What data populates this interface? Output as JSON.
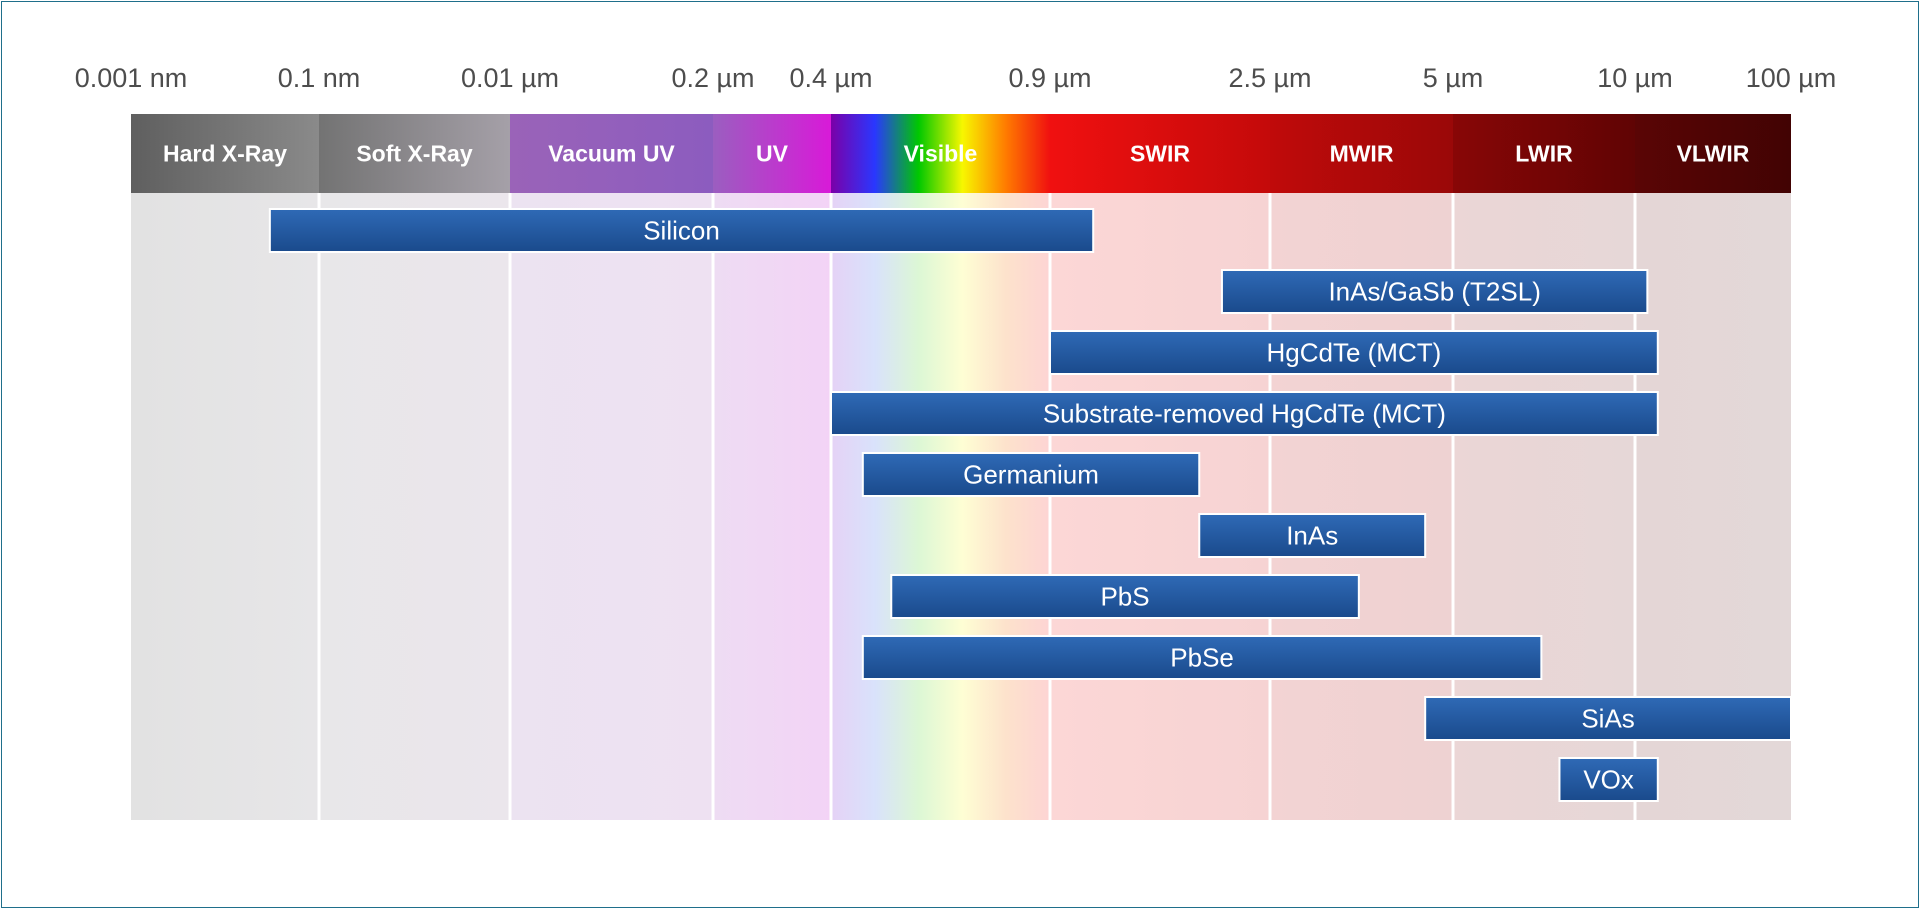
{
  "chart_data": {
    "type": "bar",
    "title": "",
    "xlabel": "",
    "ylabel": "",
    "grid": true,
    "x_scale": "piecewise-log wavelength",
    "tick_labels": [
      "0.001 nm",
      "0.1 nm",
      "0.01 µm",
      "0.2 µm",
      "0.4 µm",
      "0.9 µm",
      "2.5 µm",
      "5 µm",
      "10 µm",
      "100 µm"
    ],
    "bands": [
      {
        "name": "Hard X-Ray",
        "from": "0.001 nm",
        "to": "0.1 nm",
        "colors": [
          "#5f5f5f",
          "#8a8a8a"
        ],
        "bg": [
          "#e2e2e2",
          "#e7e6e8"
        ]
      },
      {
        "name": "Soft X-Ray",
        "from": "0.1 nm",
        "to": "0.01 µm",
        "colors": [
          "#737373",
          "#a5a0a8"
        ],
        "bg": [
          "#e8e7e9",
          "#ebe6ec"
        ]
      },
      {
        "name": "Vacuum UV",
        "from": "0.01 µm",
        "to": "0.2 µm",
        "colors": [
          "#9a63b8",
          "#8c5cbf"
        ],
        "bg": [
          "#ece3f1",
          "#eee1f2"
        ]
      },
      {
        "name": "UV",
        "from": "0.2 µm",
        "to": "0.4 µm",
        "colors": [
          "#9b5ec0",
          "#d81ad8"
        ],
        "bg": [
          "#eedcf3",
          "#f3d3f6"
        ]
      },
      {
        "name": "Visible",
        "from": "0.4 µm",
        "to": "0.9 µm",
        "colors": [
          "#7a00a8",
          "#2a37ff",
          "#00c800",
          "#f7f700",
          "#ff7a00",
          "#f01010"
        ],
        "bg": [
          "#e5d2f6",
          "#d9e2fb",
          "#dcf7d5",
          "#fefed4",
          "#fde2cc",
          "#fdd4d4"
        ]
      },
      {
        "name": "SWIR",
        "from": "0.9 µm",
        "to": "2.5 µm",
        "colors": [
          "#f01010",
          "#c40a0a"
        ],
        "bg": [
          "#fcd7d6",
          "#f6d3d3"
        ]
      },
      {
        "name": "MWIR",
        "from": "2.5 µm",
        "to": "5 µm",
        "colors": [
          "#c00a0a",
          "#9a0808"
        ],
        "bg": [
          "#f3d3d3",
          "#eed2d2"
        ]
      },
      {
        "name": "LWIR",
        "from": "5 µm",
        "to": "10 µm",
        "colors": [
          "#880606",
          "#600404"
        ],
        "bg": [
          "#ebd6d6",
          "#e6d7d7"
        ]
      },
      {
        "name": "VLWIR",
        "from": "10 µm",
        "to": "100 µm",
        "colors": [
          "#5a0505",
          "#420303"
        ],
        "bg": [
          "#e4d6d6",
          "#e3d8d8"
        ]
      }
    ],
    "ranges": [
      {
        "name": "Silicon",
        "from": "0.03 nm",
        "to": "1.1 µm"
      },
      {
        "name": "InAs/GaSb (T2SL)",
        "from": "2 µm",
        "to": "12 µm"
      },
      {
        "name": "HgCdTe (MCT)",
        "from": "0.9 µm",
        "to": "14 µm"
      },
      {
        "name": "Substrate-removed HgCdTe (MCT)",
        "from": "0.4 µm",
        "to": "14 µm"
      },
      {
        "name": "Germanium",
        "from": "0.45 µm",
        "to": "1.8 µm"
      },
      {
        "name": "InAs",
        "from": "1.8 µm",
        "to": "4.5 µm"
      },
      {
        "name": "PbS",
        "from": "0.5 µm",
        "to": "3.5 µm"
      },
      {
        "name": "PbSe",
        "from": "0.45 µm",
        "to": "7 µm"
      },
      {
        "name": "SiAs",
        "from": "4.5 µm",
        "to": "100 µm"
      },
      {
        "name": "VOx",
        "from": "7.5 µm",
        "to": "14 µm"
      }
    ],
    "bar_color": [
      "#2f6ab6",
      "#1a4a8c"
    ]
  }
}
